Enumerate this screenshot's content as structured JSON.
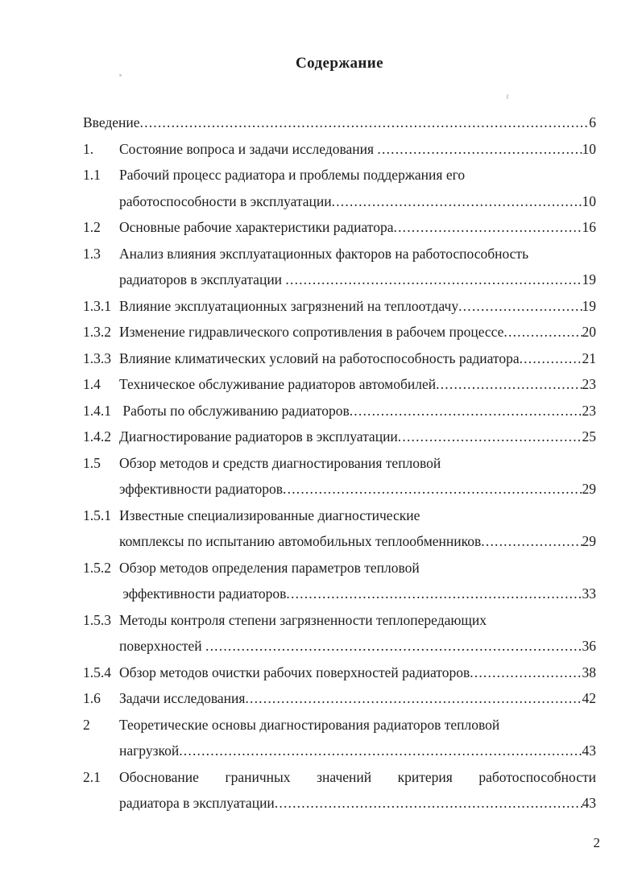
{
  "document": {
    "title": "Содержание",
    "page_number": "2"
  },
  "toc_lines": [
    {
      "number": null,
      "text": "Введение",
      "page": "6",
      "continuation": false,
      "justify": false
    },
    {
      "number": "1.",
      "text": "Состояние вопроса и задачи исследования ",
      "page": "10",
      "continuation": false,
      "justify": false
    },
    {
      "number": "1.1",
      "text": "Рабочий процесс радиатора и проблемы поддержания его",
      "page": null,
      "continuation": false,
      "justify": false
    },
    {
      "number": "",
      "text": "работоспособности в эксплуатации",
      "page": "10",
      "continuation": true,
      "justify": false
    },
    {
      "number": "1.2",
      "text": "Основные рабочие характеристики радиатора",
      "page": "16",
      "continuation": false,
      "justify": false
    },
    {
      "number": "1.3",
      "text": "Анализ влияния эксплуатационных факторов на работоспособность",
      "page": null,
      "continuation": false,
      "justify": false
    },
    {
      "number": "",
      "text": "радиаторов в эксплуатации ",
      "page": "19",
      "continuation": true,
      "justify": false
    },
    {
      "number": "1.3.1",
      "text": "Влияние эксплуатационных загрязнений на теплоотдачу",
      "page": "19",
      "continuation": false,
      "justify": false
    },
    {
      "number": "1.3.2",
      "text": "Изменение гидравлического сопротивления в рабочем процессе",
      "page": "20",
      "continuation": false,
      "justify": false
    },
    {
      "number": "1.3.3",
      "text": "Влияние климатических условий на работоспособность радиатора",
      "page": "21",
      "continuation": false,
      "justify": false
    },
    {
      "number": "1.4",
      "text": "Техническое обслуживание радиаторов автомобилей",
      "page": "23",
      "continuation": false,
      "justify": false
    },
    {
      "number": "1.4.1",
      "text": " Работы по обслуживанию радиаторов",
      "page": "23",
      "continuation": false,
      "justify": false
    },
    {
      "number": "1.4.2",
      "text": "Диагностирование радиаторов в эксплуатации",
      "page": "25",
      "continuation": false,
      "justify": false
    },
    {
      "number": "1.5",
      "text": "Обзор методов и средств диагностирования тепловой",
      "page": null,
      "continuation": false,
      "justify": false
    },
    {
      "number": "",
      "text": "эффективности радиаторов",
      "page": "29",
      "continuation": true,
      "justify": false
    },
    {
      "number": "1.5.1",
      "text": "Известные специализированные диагностические",
      "page": null,
      "continuation": false,
      "justify": false
    },
    {
      "number": "",
      "text": "комплексы по испытанию автомобильных теплообменников",
      "page": "29",
      "continuation": true,
      "justify": false
    },
    {
      "number": "1.5.2",
      "text": "Обзор методов определения параметров тепловой",
      "page": null,
      "continuation": false,
      "justify": false
    },
    {
      "number": "",
      "text": " эффективности радиаторов",
      "page": "33",
      "continuation": true,
      "justify": false
    },
    {
      "number": "1.5.3",
      "text": "Методы контроля степени загрязненности теплопередающих",
      "page": null,
      "continuation": false,
      "justify": false
    },
    {
      "number": "",
      "text": "поверхностей ",
      "page": "36",
      "continuation": true,
      "justify": false
    },
    {
      "number": "1.5.4",
      "text": "Обзор методов очистки рабочих поверхностей радиаторов",
      "page": "38",
      "continuation": false,
      "justify": false
    },
    {
      "number": "1.6",
      "text": "Задачи исследования",
      "page": "42",
      "continuation": false,
      "justify": false
    },
    {
      "number": "2",
      "text": "Теоретические основы диагностирования радиаторов тепловой",
      "page": null,
      "continuation": false,
      "justify": false
    },
    {
      "number": "",
      "text": "нагрузкой",
      "page": "43",
      "continuation": true,
      "justify": false
    },
    {
      "number": "2.1",
      "text": "Обоснование граничных значений критерия работоспособности",
      "page": null,
      "continuation": false,
      "justify": true
    },
    {
      "number": "",
      "text": "радиатора в эксплуатации",
      "page": "43",
      "continuation": true,
      "justify": false
    }
  ]
}
